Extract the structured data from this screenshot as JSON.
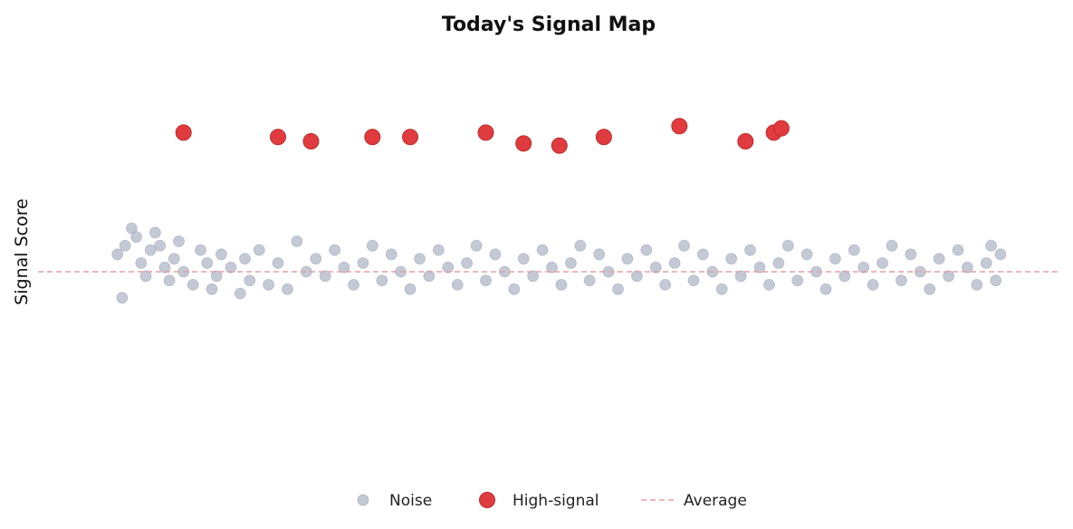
{
  "chart_data": {
    "type": "scatter",
    "title": "Today's Signal Map",
    "xlabel": "",
    "ylabel": "Signal Score",
    "xlim": [
      0,
      100
    ],
    "ylim": [
      0,
      100
    ],
    "grid": false,
    "legend_placement": "bottom-center",
    "colors": {
      "noise": "#a9b2c3",
      "high_signal": "#e03c3f",
      "average": "#e8a0a0"
    },
    "average": 50,
    "series": [
      {
        "name": "Noise",
        "marker": "small-circle",
        "points": [
          [
            4,
            54
          ],
          [
            4.5,
            44
          ],
          [
            4.8,
            56
          ],
          [
            5.5,
            60
          ],
          [
            6,
            58
          ],
          [
            6.5,
            52
          ],
          [
            7,
            49
          ],
          [
            7.5,
            55
          ],
          [
            8,
            59
          ],
          [
            8.5,
            56
          ],
          [
            9,
            51
          ],
          [
            9.5,
            48
          ],
          [
            10,
            53
          ],
          [
            10.5,
            57
          ],
          [
            11,
            50
          ],
          [
            12,
            47
          ],
          [
            12.8,
            55
          ],
          [
            13.5,
            52
          ],
          [
            14,
            46
          ],
          [
            14.5,
            49
          ],
          [
            15,
            54
          ],
          [
            16,
            51
          ],
          [
            17,
            45
          ],
          [
            17.5,
            53
          ],
          [
            18,
            48
          ],
          [
            19,
            55
          ],
          [
            20,
            47
          ],
          [
            21,
            52
          ],
          [
            22,
            46
          ],
          [
            23,
            57
          ],
          [
            24,
            50
          ],
          [
            25,
            53
          ],
          [
            26,
            49
          ],
          [
            27,
            55
          ],
          [
            28,
            51
          ],
          [
            29,
            47
          ],
          [
            30,
            52
          ],
          [
            31,
            56
          ],
          [
            32,
            48
          ],
          [
            33,
            54
          ],
          [
            34,
            50
          ],
          [
            35,
            46
          ],
          [
            36,
            53
          ],
          [
            37,
            49
          ],
          [
            38,
            55
          ],
          [
            39,
            51
          ],
          [
            40,
            47
          ],
          [
            41,
            52
          ],
          [
            42,
            56
          ],
          [
            43,
            48
          ],
          [
            44,
            54
          ],
          [
            45,
            50
          ],
          [
            46,
            46
          ],
          [
            47,
            53
          ],
          [
            48,
            49
          ],
          [
            49,
            55
          ],
          [
            50,
            51
          ],
          [
            51,
            47
          ],
          [
            52,
            52
          ],
          [
            53,
            56
          ],
          [
            54,
            48
          ],
          [
            55,
            54
          ],
          [
            56,
            50
          ],
          [
            57,
            46
          ],
          [
            58,
            53
          ],
          [
            59,
            49
          ],
          [
            60,
            55
          ],
          [
            61,
            51
          ],
          [
            62,
            47
          ],
          [
            63,
            52
          ],
          [
            64,
            56
          ],
          [
            65,
            48
          ],
          [
            66,
            54
          ],
          [
            67,
            50
          ],
          [
            68,
            46
          ],
          [
            69,
            53
          ],
          [
            70,
            49
          ],
          [
            71,
            55
          ],
          [
            72,
            51
          ],
          [
            73,
            47
          ],
          [
            74,
            52
          ],
          [
            75,
            56
          ],
          [
            76,
            48
          ],
          [
            77,
            54
          ],
          [
            78,
            50
          ],
          [
            79,
            46
          ],
          [
            80,
            53
          ],
          [
            81,
            49
          ],
          [
            82,
            55
          ],
          [
            83,
            51
          ],
          [
            84,
            47
          ],
          [
            85,
            52
          ],
          [
            86,
            56
          ],
          [
            87,
            48
          ],
          [
            88,
            54
          ],
          [
            89,
            50
          ],
          [
            90,
            46
          ],
          [
            91,
            53
          ],
          [
            92,
            49
          ],
          [
            93,
            55
          ],
          [
            94,
            51
          ],
          [
            95,
            47
          ],
          [
            96,
            52
          ],
          [
            96.5,
            56
          ],
          [
            97,
            48
          ],
          [
            97.5,
            54
          ]
        ]
      },
      {
        "name": "High-signal",
        "marker": "large-circle",
        "points": [
          [
            11,
            82
          ],
          [
            21,
            81
          ],
          [
            24.5,
            80
          ],
          [
            31,
            81
          ],
          [
            35,
            81
          ],
          [
            43,
            82
          ],
          [
            47,
            79.5
          ],
          [
            50.8,
            79
          ],
          [
            55.5,
            81
          ],
          [
            63.5,
            83.5
          ],
          [
            70.5,
            80
          ],
          [
            73.5,
            82
          ],
          [
            74.3,
            83
          ]
        ]
      }
    ],
    "legend": [
      {
        "label": "Noise",
        "kind": "marker",
        "series": 0
      },
      {
        "label": "High-signal",
        "kind": "marker",
        "series": 1
      },
      {
        "label": "Average",
        "kind": "line"
      }
    ]
  }
}
